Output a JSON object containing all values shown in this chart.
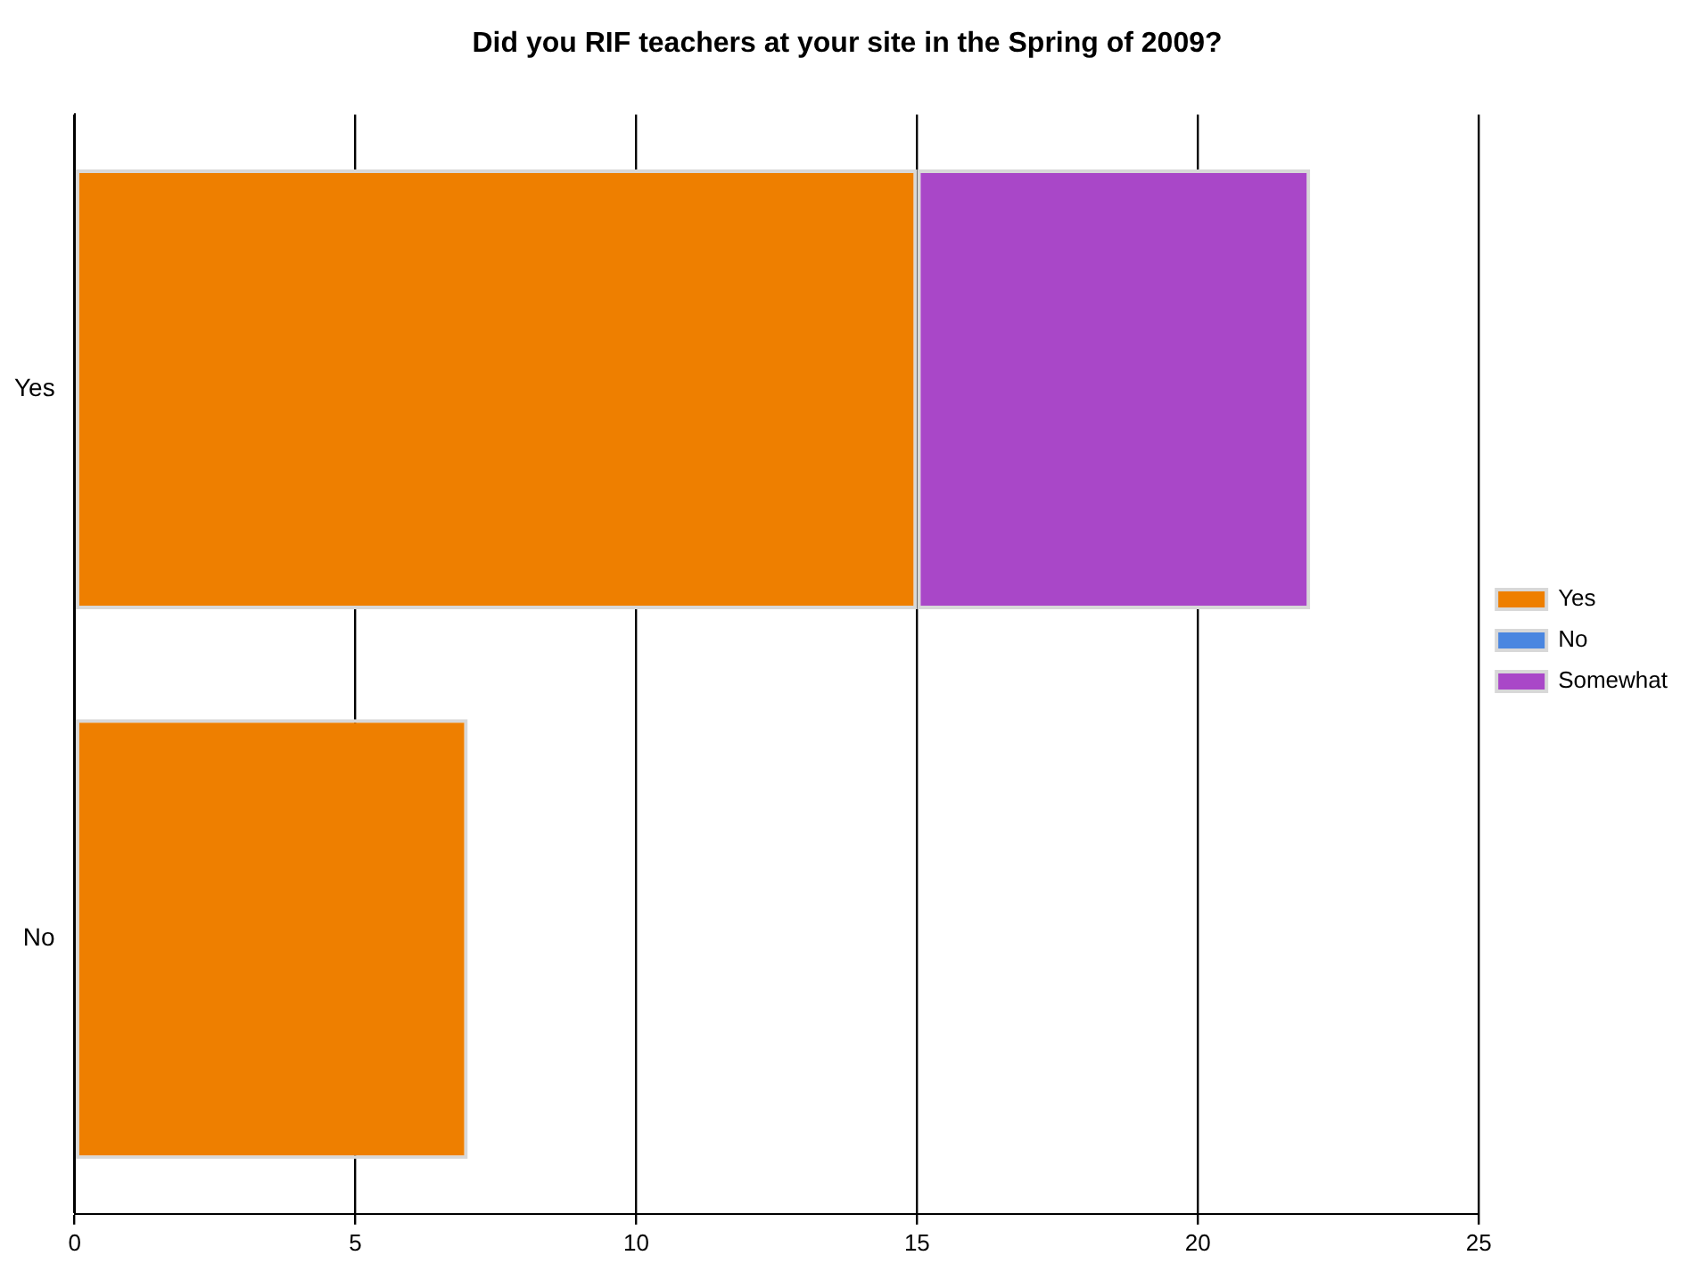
{
  "chart_data": {
    "type": "bar",
    "orientation": "horizontal",
    "stacked": true,
    "title": "Did you RIF teachers at your site in the Spring of 2009?",
    "categories": [
      "Yes",
      "No"
    ],
    "series": [
      {
        "name": "Yes",
        "color": "#ee7f00",
        "values": [
          15,
          7
        ]
      },
      {
        "name": "No",
        "color": "#4a86e0",
        "values": [
          0,
          0
        ]
      },
      {
        "name": "Somewhat",
        "color": "#a947c8",
        "values": [
          7,
          0
        ]
      }
    ],
    "xlim": [
      0,
      25
    ],
    "xticks": [
      0,
      5,
      10,
      15,
      20,
      25
    ],
    "grid": "x",
    "legend": "right"
  }
}
